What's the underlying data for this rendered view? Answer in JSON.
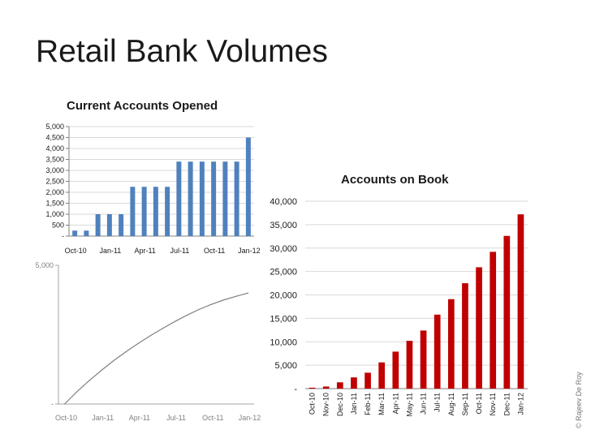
{
  "page": {
    "title": "Retail Bank Volumes",
    "copyright": "© Rajeev De Roy"
  },
  "colors": {
    "bar_blue": "#4f81bd",
    "bar_red": "#c00000",
    "line_gray": "#808080",
    "grid": "#d9d9d9"
  },
  "chart_data": [
    {
      "type": "bar",
      "title": "Current Accounts Opened",
      "categories": [
        "Oct-10",
        "Nov-10",
        "Dec-10",
        "Jan-11",
        "Feb-11",
        "Mar-11",
        "Apr-11",
        "May-11",
        "Jun-11",
        "Jul-11",
        "Aug-11",
        "Sep-11",
        "Oct-11",
        "Nov-11",
        "Dec-11",
        "Jan-12"
      ],
      "x_tick_labels": [
        "Oct-10",
        "Jan-11",
        "Apr-11",
        "Jul-11",
        "Oct-11",
        "Jan-12"
      ],
      "values": [
        250,
        250,
        1000,
        1000,
        1000,
        2250,
        2250,
        2250,
        2250,
        3400,
        3400,
        3400,
        3400,
        3400,
        3400,
        4500
      ],
      "ylim": [
        0,
        5000
      ],
      "y_tick_labels": [
        "-",
        "500",
        "1,000",
        "1,500",
        "2,000",
        "2,500",
        "3,000",
        "3,500",
        "4,000",
        "4,500",
        "5,000"
      ],
      "grid": true,
      "color": "#4f81bd"
    },
    {
      "type": "line",
      "title": "",
      "x": [
        "Oct-10",
        "Nov-10",
        "Dec-10",
        "Jan-11",
        "Feb-11",
        "Mar-11",
        "Apr-11",
        "May-11",
        "Jun-11",
        "Jul-11",
        "Aug-11",
        "Sep-11",
        "Oct-11",
        "Nov-11",
        "Dec-11",
        "Jan-12"
      ],
      "x_tick_labels": [
        "Oct-10",
        "Jan-11",
        "Apr-11",
        "Jul-11",
        "Oct-11",
        "Jan-12"
      ],
      "values": [
        0,
        440,
        840,
        1210,
        1560,
        1880,
        2180,
        2460,
        2720,
        2970,
        3200,
        3410,
        3590,
        3750,
        3880,
        4000
      ],
      "ylim": [
        0,
        5000
      ],
      "y_tick_labels": [
        "-",
        "5,000"
      ],
      "grid": false,
      "color": "#808080"
    },
    {
      "type": "bar",
      "title": "Accounts on Book",
      "categories": [
        "Oct-10",
        "Nov-10",
        "Dec-10",
        "Jan-11",
        "Feb-11",
        "Mar-11",
        "Apr-11",
        "May-11",
        "Jun-11",
        "Jul-11",
        "Aug-11",
        "Sep-11",
        "Oct-11",
        "Nov-11",
        "Dec-11",
        "Jan-12"
      ],
      "values": [
        200,
        450,
        1350,
        2400,
        3400,
        5600,
        7900,
        10200,
        12400,
        15800,
        19100,
        22500,
        25900,
        29200,
        32600,
        37200
      ],
      "ylim": [
        0,
        40000
      ],
      "y_tick_labels": [
        "-",
        "5,000",
        "10,000",
        "15,000",
        "20,000",
        "25,000",
        "30,000",
        "35,000",
        "40,000"
      ],
      "grid": true,
      "color": "#c00000"
    }
  ]
}
